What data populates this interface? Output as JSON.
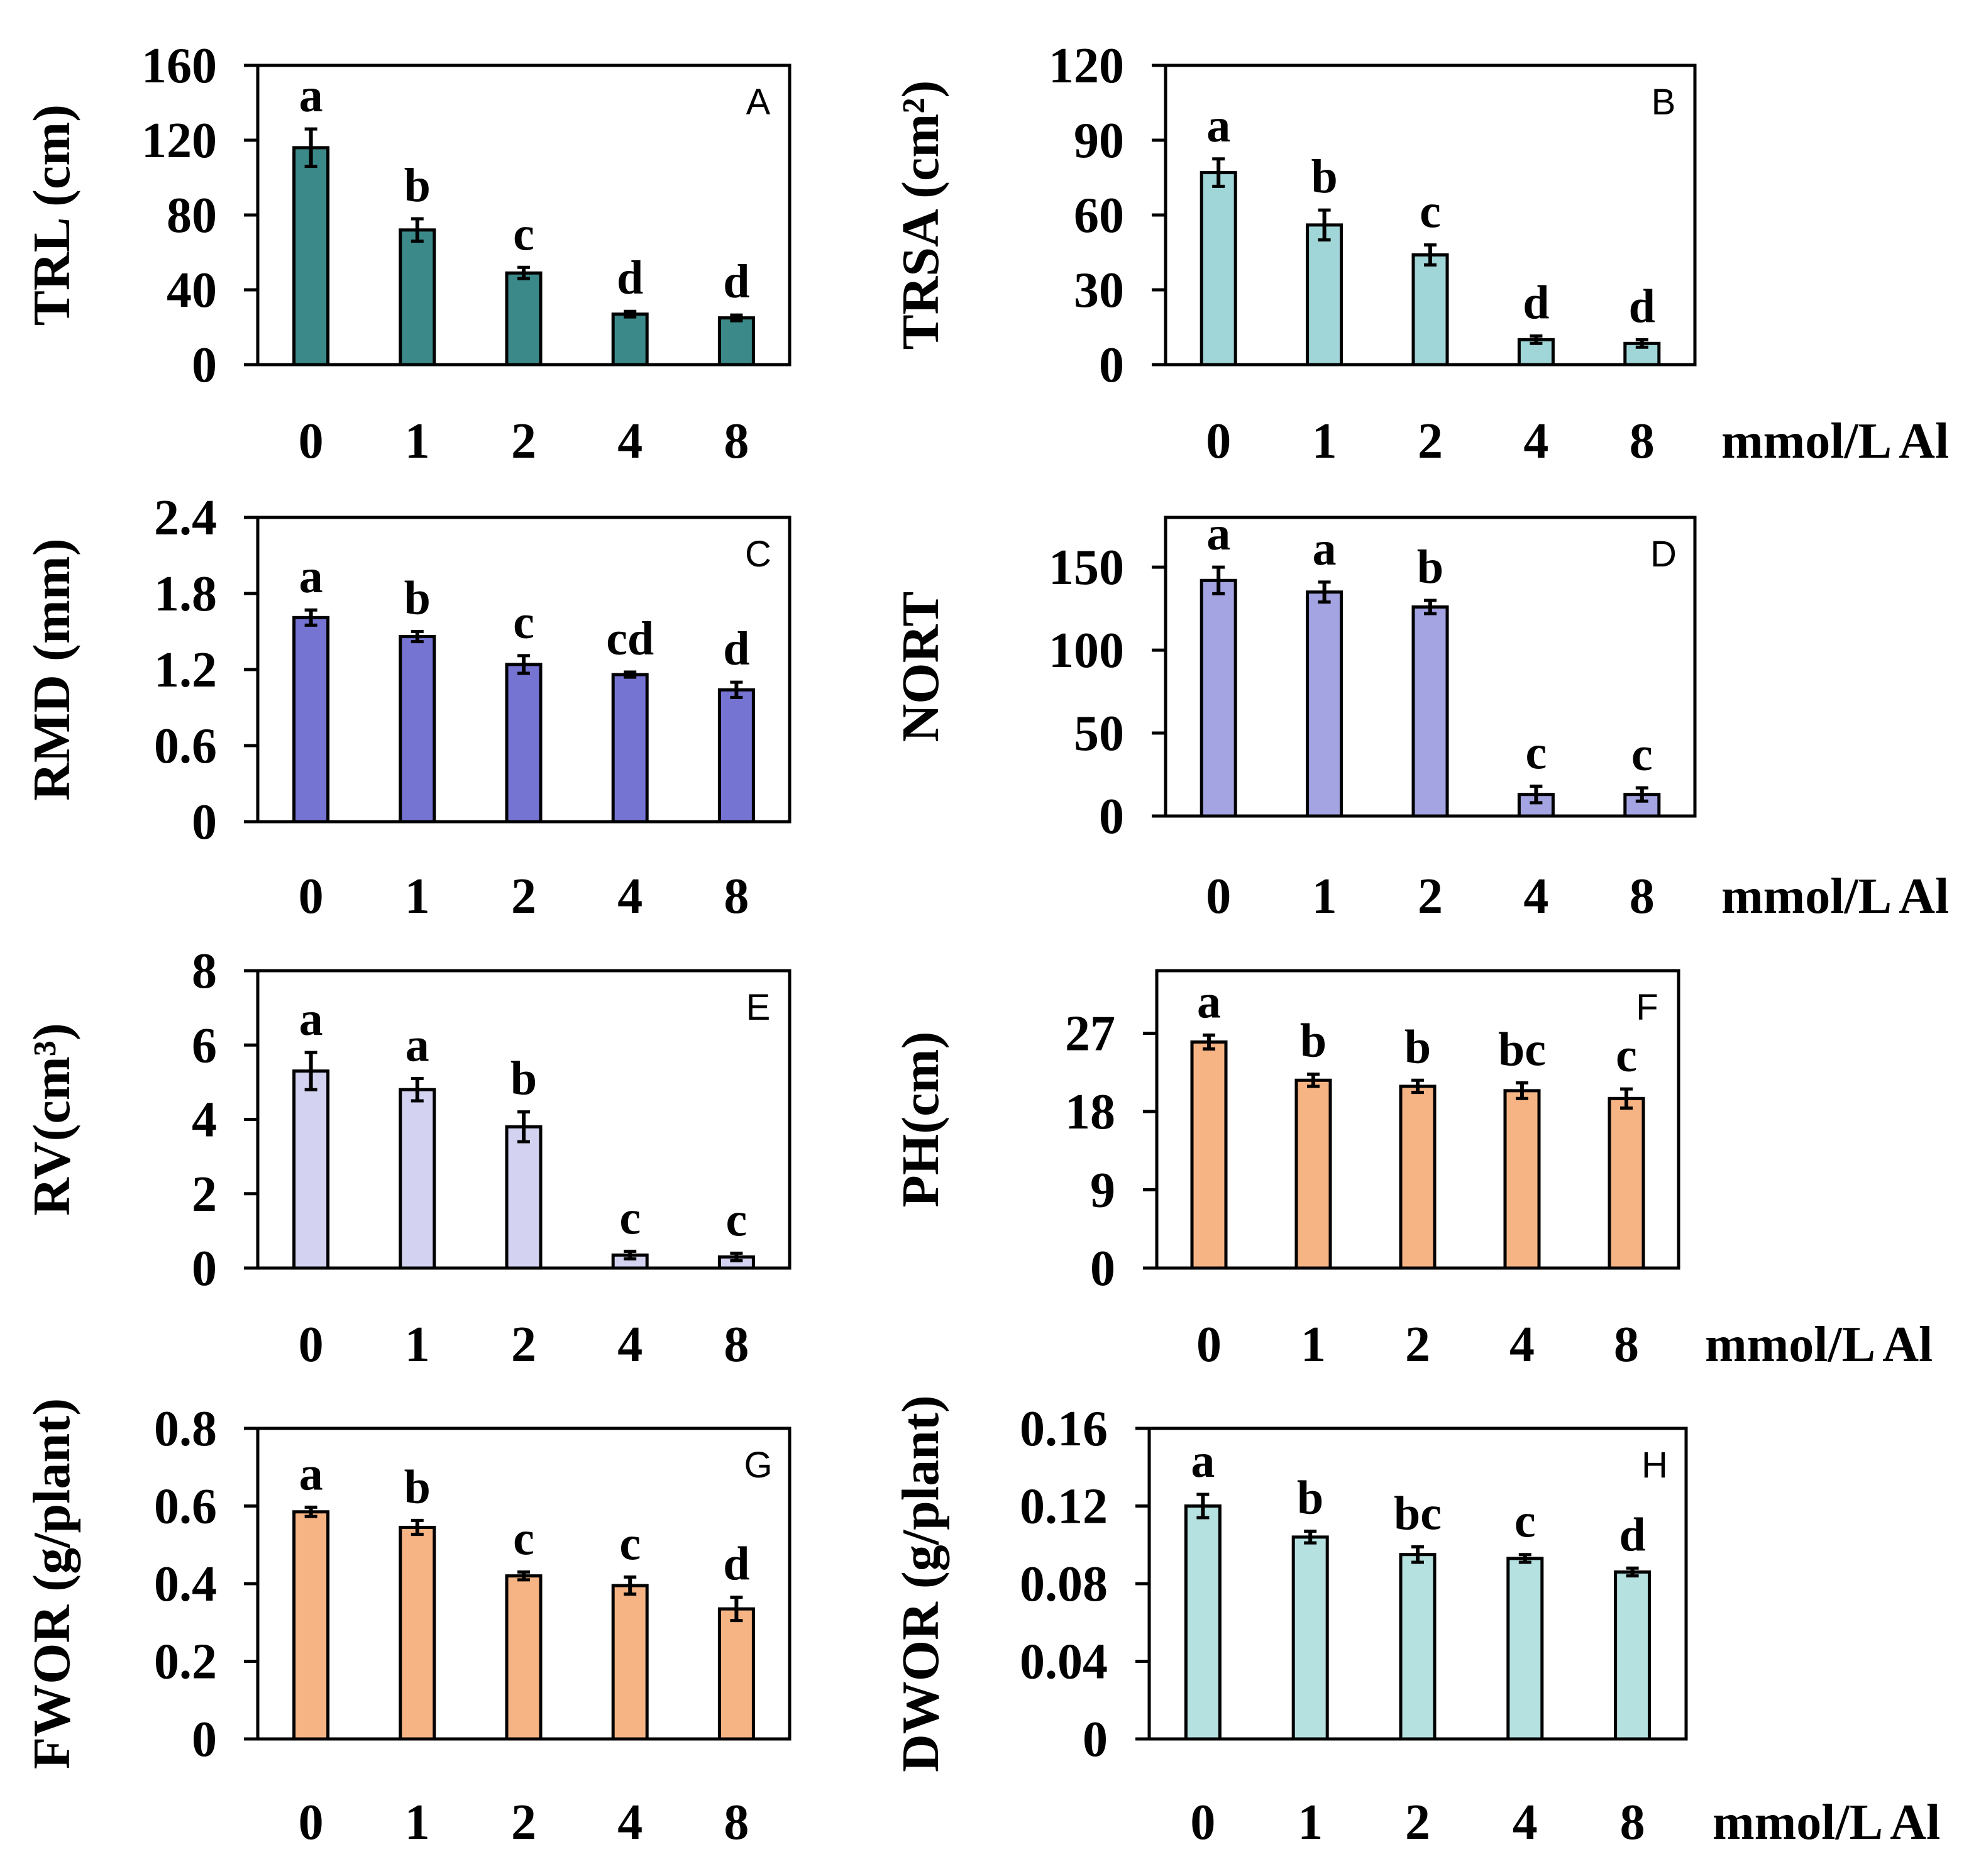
{
  "figure": {
    "unit_label": "mmol/L Al"
  },
  "chart_data": [
    {
      "type": "bar",
      "panel": "A",
      "ylabel": "TRL (cm)",
      "categories": [
        "0",
        "1",
        "2",
        "4",
        "8"
      ],
      "values": [
        116,
        72,
        49,
        27,
        25
      ],
      "errors": [
        10,
        6,
        3,
        1.5,
        1.5
      ],
      "significance": [
        "a",
        "b",
        "c",
        "d",
        "d"
      ],
      "ylim": [
        0,
        160
      ],
      "yticks": [
        "0",
        "40",
        "80",
        "120",
        "160"
      ],
      "color": "#3b8a89"
    },
    {
      "type": "bar",
      "panel": "B",
      "ylabel": "TRSA (cm²)",
      "categories": [
        "0",
        "1",
        "2",
        "4",
        "8"
      ],
      "values": [
        77,
        56,
        44,
        10,
        8.5
      ],
      "errors": [
        5.5,
        6,
        4,
        1.5,
        1.5
      ],
      "significance": [
        "a",
        "b",
        "c",
        "d",
        "d"
      ],
      "ylim": [
        0,
        120
      ],
      "yticks": [
        "0",
        "30",
        "60",
        "90",
        "120"
      ],
      "color": "#a1d6d8"
    },
    {
      "type": "bar",
      "panel": "C",
      "ylabel": "RMD (mm)",
      "categories": [
        "0",
        "1",
        "2",
        "4",
        "8"
      ],
      "values": [
        1.61,
        1.46,
        1.24,
        1.16,
        1.04
      ],
      "errors": [
        0.06,
        0.04,
        0.07,
        0.02,
        0.06
      ],
      "significance": [
        "a",
        "b",
        "c",
        "cd",
        "d"
      ],
      "ylim": [
        0,
        2.4
      ],
      "yticks": [
        "0",
        "0.6",
        "1.2",
        "1.8",
        "2.4"
      ],
      "color": "#7574d3"
    },
    {
      "type": "bar",
      "panel": "D",
      "ylabel": "NORT",
      "categories": [
        "0",
        "1",
        "2",
        "4",
        "8"
      ],
      "values": [
        142,
        135,
        126,
        13,
        13
      ],
      "errors": [
        8,
        6,
        4,
        5,
        4
      ],
      "significance": [
        "a",
        "a",
        "b",
        "c",
        "c"
      ],
      "ylim": [
        0,
        180
      ],
      "yticks": [
        "0",
        "50",
        "100",
        "150"
      ],
      "color": "#a4a4e2"
    },
    {
      "type": "bar",
      "panel": "E",
      "ylabel": "RV(cm³)",
      "categories": [
        "0",
        "1",
        "2",
        "4",
        "8"
      ],
      "values": [
        5.3,
        4.8,
        3.8,
        0.35,
        0.3
      ],
      "errors": [
        0.5,
        0.3,
        0.4,
        0.1,
        0.1
      ],
      "significance": [
        "a",
        "a",
        "b",
        "c",
        "c"
      ],
      "ylim": [
        0,
        8
      ],
      "yticks": [
        "0",
        "2",
        "4",
        "6",
        "8"
      ],
      "color": "#d3d3f1"
    },
    {
      "type": "bar",
      "panel": "F",
      "ylabel": "PH(cm)",
      "categories": [
        "0",
        "1",
        "2",
        "4",
        "8"
      ],
      "values": [
        26,
        21.6,
        20.9,
        20.4,
        19.5
      ],
      "errors": [
        0.8,
        0.7,
        0.7,
        0.9,
        1.1
      ],
      "significance": [
        "a",
        "b",
        "b",
        "bc",
        "c"
      ],
      "ylim": [
        0,
        34.2
      ],
      "yticks": [
        "0",
        "9",
        "18",
        "27"
      ],
      "color": "#f6b485"
    },
    {
      "type": "bar",
      "panel": "G",
      "ylabel": "FWOR (g/plant)",
      "categories": [
        "0",
        "1",
        "2",
        "4",
        "8"
      ],
      "values": [
        0.585,
        0.545,
        0.42,
        0.395,
        0.335
      ],
      "errors": [
        0.012,
        0.018,
        0.01,
        0.022,
        0.03
      ],
      "significance": [
        "a",
        "b",
        "c",
        "c",
        "d"
      ],
      "ylim": [
        0,
        0.8
      ],
      "yticks": [
        "0",
        "0.2",
        "0.4",
        "0.6",
        "0.8"
      ],
      "color": "#f6b485"
    },
    {
      "type": "bar",
      "panel": "H",
      "ylabel": "DWOR (g/plant)",
      "categories": [
        "0",
        "1",
        "2",
        "4",
        "8"
      ],
      "values": [
        0.12,
        0.104,
        0.095,
        0.093,
        0.086
      ],
      "errors": [
        0.006,
        0.003,
        0.004,
        0.002,
        0.002
      ],
      "significance": [
        "a",
        "b",
        "bc",
        "c",
        "d"
      ],
      "ylim": [
        0,
        0.16
      ],
      "yticks": [
        "0",
        "0.04",
        "0.08",
        "0.12",
        "0.16"
      ],
      "color": "#b6e1e1"
    }
  ]
}
